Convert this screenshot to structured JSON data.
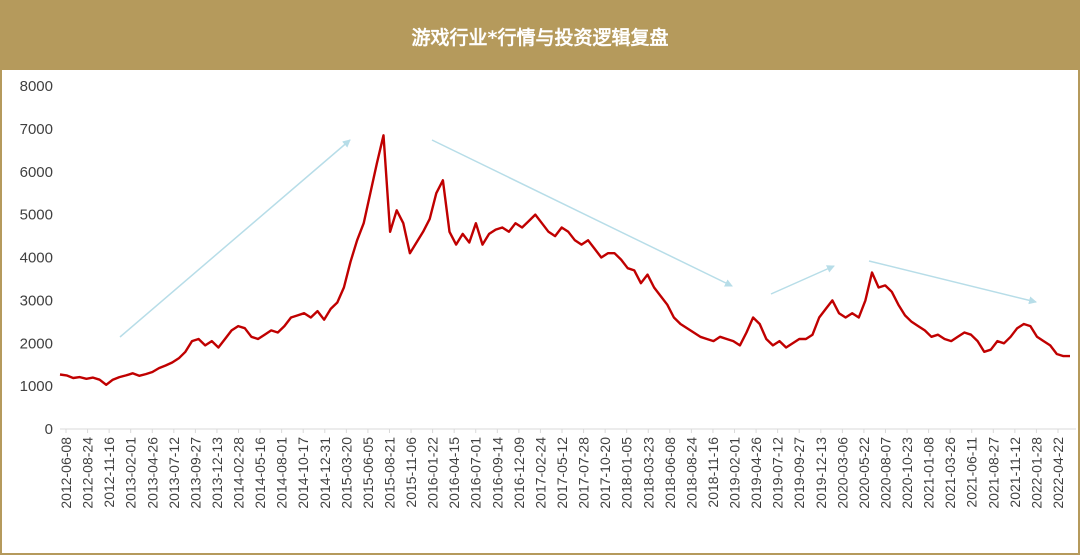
{
  "header": {
    "title": "游戏行业*行情与投资逻辑复盘"
  },
  "colors": {
    "header_bg": "#b59a5c",
    "line": "#c00000",
    "arrow": "#b7dde8"
  },
  "chart_data": {
    "type": "line",
    "title": "游戏行业*行情与投资逻辑复盘",
    "ylim": [
      0,
      8000
    ],
    "yticks": [
      0,
      1000,
      2000,
      3000,
      4000,
      5000,
      6000,
      7000,
      8000
    ],
    "x_tick_labels": [
      "2012-06-08",
      "2012-08-24",
      "2012-11-16",
      "2013-02-01",
      "2013-04-26",
      "2013-07-12",
      "2013-09-27",
      "2013-12-13",
      "2014-02-28",
      "2014-05-16",
      "2014-08-01",
      "2014-10-17",
      "2014-12-31",
      "2015-03-20",
      "2015-06-05",
      "2015-08-21",
      "2015-11-06",
      "2016-01-22",
      "2016-04-15",
      "2016-07-01",
      "2016-09-14",
      "2016-12-09",
      "2017-02-24",
      "2017-05-12",
      "2017-07-28",
      "2017-10-20",
      "2018-01-05",
      "2018-03-23",
      "2018-06-08",
      "2018-08-24",
      "2018-11-16",
      "2019-02-01",
      "2019-04-26",
      "2019-07-12",
      "2019-09-27",
      "2019-12-13",
      "2020-03-06",
      "2020-05-22",
      "2020-08-07",
      "2020-10-23",
      "2021-01-08",
      "2021-03-26",
      "2021-06-11",
      "2021-08-27",
      "2021-11-12",
      "2022-01-28",
      "2022-04-22"
    ],
    "grid": false,
    "series": [
      {
        "values": [
          [
            0,
            1270
          ],
          [
            0.5,
            1250
          ],
          [
            1,
            1190
          ],
          [
            1.5,
            1210
          ],
          [
            2,
            1170
          ],
          [
            2.5,
            1200
          ],
          [
            3,
            1150
          ],
          [
            3.5,
            1030
          ],
          [
            4,
            1150
          ],
          [
            4.5,
            1210
          ],
          [
            5,
            1250
          ],
          [
            5.5,
            1300
          ],
          [
            6,
            1240
          ],
          [
            6.5,
            1280
          ],
          [
            7,
            1330
          ],
          [
            7.5,
            1420
          ],
          [
            8,
            1480
          ],
          [
            8.5,
            1550
          ],
          [
            9,
            1650
          ],
          [
            9.5,
            1800
          ],
          [
            10,
            2050
          ],
          [
            10.5,
            2100
          ],
          [
            11,
            1950
          ],
          [
            11.5,
            2050
          ],
          [
            12,
            1900
          ],
          [
            12.5,
            2100
          ],
          [
            13,
            2300
          ],
          [
            13.5,
            2400
          ],
          [
            14,
            2350
          ],
          [
            14.5,
            2150
          ],
          [
            15,
            2100
          ],
          [
            15.5,
            2200
          ],
          [
            16,
            2300
          ],
          [
            16.5,
            2250
          ],
          [
            17,
            2400
          ],
          [
            17.5,
            2600
          ],
          [
            18,
            2650
          ],
          [
            18.5,
            2700
          ],
          [
            19,
            2600
          ],
          [
            19.5,
            2750
          ],
          [
            20,
            2550
          ],
          [
            20.5,
            2800
          ],
          [
            21,
            2950
          ],
          [
            21.5,
            3300
          ],
          [
            22,
            3900
          ],
          [
            22.5,
            4400
          ],
          [
            23,
            4800
          ],
          [
            23.5,
            5500
          ],
          [
            24,
            6200
          ],
          [
            24.5,
            6850
          ],
          [
            25,
            4600
          ],
          [
            25.5,
            5100
          ],
          [
            26,
            4800
          ],
          [
            26.5,
            4100
          ],
          [
            27,
            4350
          ],
          [
            27.5,
            4600
          ],
          [
            28,
            4900
          ],
          [
            28.5,
            5500
          ],
          [
            29,
            5800
          ],
          [
            29.5,
            4600
          ],
          [
            30,
            4300
          ],
          [
            30.5,
            4550
          ],
          [
            31,
            4350
          ],
          [
            31.5,
            4800
          ],
          [
            32,
            4300
          ],
          [
            32.5,
            4550
          ],
          [
            33,
            4650
          ],
          [
            33.5,
            4700
          ],
          [
            34,
            4600
          ],
          [
            34.5,
            4800
          ],
          [
            35,
            4700
          ],
          [
            35.5,
            4850
          ],
          [
            36,
            5000
          ],
          [
            36.5,
            4800
          ],
          [
            37,
            4600
          ],
          [
            37.5,
            4500
          ],
          [
            38,
            4700
          ],
          [
            38.5,
            4600
          ],
          [
            39,
            4400
          ],
          [
            39.5,
            4300
          ],
          [
            40,
            4400
          ],
          [
            40.5,
            4200
          ],
          [
            41,
            4000
          ],
          [
            41.5,
            4100
          ],
          [
            42,
            4100
          ],
          [
            42.5,
            3950
          ],
          [
            43,
            3750
          ],
          [
            43.5,
            3700
          ],
          [
            44,
            3400
          ],
          [
            44.5,
            3600
          ],
          [
            45,
            3300
          ],
          [
            45.5,
            3100
          ],
          [
            46,
            2900
          ],
          [
            46.5,
            2600
          ],
          [
            47,
            2450
          ],
          [
            47.5,
            2350
          ],
          [
            48,
            2250
          ],
          [
            48.5,
            2150
          ],
          [
            49,
            2100
          ],
          [
            49.5,
            2050
          ],
          [
            50,
            2150
          ],
          [
            50.5,
            2100
          ],
          [
            51,
            2050
          ],
          [
            51.5,
            1950
          ],
          [
            52,
            2250
          ],
          [
            52.5,
            2600
          ],
          [
            53,
            2450
          ],
          [
            53.5,
            2100
          ],
          [
            54,
            1950
          ],
          [
            54.5,
            2050
          ],
          [
            55,
            1900
          ],
          [
            55.5,
            2000
          ],
          [
            56,
            2100
          ],
          [
            56.5,
            2100
          ],
          [
            57,
            2200
          ],
          [
            57.5,
            2600
          ],
          [
            58,
            2800
          ],
          [
            58.5,
            3000
          ],
          [
            59,
            2700
          ],
          [
            59.5,
            2600
          ],
          [
            60,
            2700
          ],
          [
            60.5,
            2600
          ],
          [
            61,
            3000
          ],
          [
            61.5,
            3650
          ],
          [
            62,
            3300
          ],
          [
            62.5,
            3350
          ],
          [
            63,
            3200
          ],
          [
            63.5,
            2900
          ],
          [
            64,
            2650
          ],
          [
            64.5,
            2500
          ],
          [
            65,
            2400
          ],
          [
            65.5,
            2300
          ],
          [
            66,
            2150
          ],
          [
            66.5,
            2200
          ],
          [
            67,
            2100
          ],
          [
            67.5,
            2050
          ],
          [
            68,
            2150
          ],
          [
            68.5,
            2250
          ],
          [
            69,
            2200
          ],
          [
            69.5,
            2050
          ],
          [
            70,
            1800
          ],
          [
            70.5,
            1850
          ],
          [
            71,
            2050
          ],
          [
            71.5,
            2000
          ],
          [
            72,
            2150
          ],
          [
            72.5,
            2350
          ],
          [
            73,
            2450
          ],
          [
            73.5,
            2400
          ],
          [
            74,
            2150
          ],
          [
            74.5,
            2050
          ],
          [
            75,
            1950
          ],
          [
            75.5,
            1750
          ],
          [
            76,
            1700
          ],
          [
            76.5,
            1700
          ]
        ]
      }
    ],
    "x_domain": [
      0,
      76.5
    ]
  }
}
